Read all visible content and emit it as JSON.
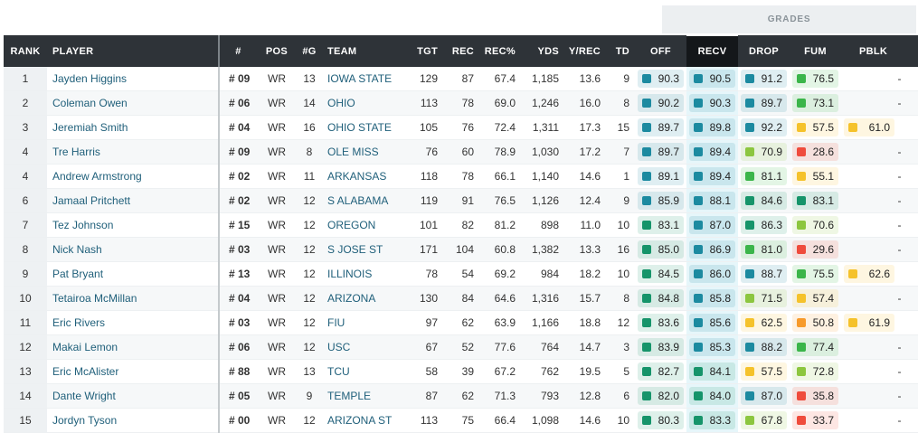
{
  "grades_header": "GRADES",
  "columns": {
    "rank": "RANK",
    "player": "PLAYER",
    "num": "#",
    "pos": "POS",
    "games": "#G",
    "team": "TEAM",
    "tgt": "TGT",
    "rec": "REC",
    "recpct": "REC%",
    "yds": "YDS",
    "yrec": "Y/REC",
    "td": "TD",
    "off": "OFF",
    "recv": "RECV",
    "drop": "DROP",
    "fum": "FUM",
    "pblk": "PBLK"
  },
  "colors": {
    "dark_green": "#16946a",
    "teal": "#1c8aa0",
    "light_green": "#8cc63f",
    "green": "#3bb54a",
    "yellow": "#f5c22b",
    "orange": "#f79a2b",
    "red": "#ef4b3c"
  },
  "rows": [
    {
      "rank": "1",
      "player": "Jayden Higgins",
      "num": "# 09",
      "pos": "WR",
      "g": "13",
      "team": "IOWA STATE",
      "tgt": "129",
      "rec": "87",
      "recpct": "67.4",
      "yds": "1,185",
      "yrec": "13.6",
      "td": "9",
      "off": {
        "v": "90.3",
        "c": "teal"
      },
      "recv": {
        "v": "90.5",
        "c": "teal"
      },
      "drop": {
        "v": "91.2",
        "c": "teal"
      },
      "fum": {
        "v": "76.5",
        "c": "green"
      },
      "pblk": {
        "v": "-",
        "c": ""
      }
    },
    {
      "rank": "2",
      "player": "Coleman Owen",
      "num": "# 06",
      "pos": "WR",
      "g": "14",
      "team": "OHIO",
      "tgt": "113",
      "rec": "78",
      "recpct": "69.0",
      "yds": "1,246",
      "yrec": "16.0",
      "td": "8",
      "off": {
        "v": "90.2",
        "c": "teal"
      },
      "recv": {
        "v": "90.3",
        "c": "teal"
      },
      "drop": {
        "v": "89.7",
        "c": "teal"
      },
      "fum": {
        "v": "73.1",
        "c": "green"
      },
      "pblk": {
        "v": "-",
        "c": ""
      }
    },
    {
      "rank": "3",
      "player": "Jeremiah Smith",
      "num": "# 04",
      "pos": "WR",
      "g": "16",
      "team": "OHIO STATE",
      "tgt": "105",
      "rec": "76",
      "recpct": "72.4",
      "yds": "1,311",
      "yrec": "17.3",
      "td": "15",
      "off": {
        "v": "89.7",
        "c": "teal"
      },
      "recv": {
        "v": "89.8",
        "c": "teal"
      },
      "drop": {
        "v": "92.2",
        "c": "teal"
      },
      "fum": {
        "v": "57.5",
        "c": "yellow"
      },
      "pblk": {
        "v": "61.0",
        "c": "yellow"
      }
    },
    {
      "rank": "4",
      "player": "Tre Harris",
      "num": "# 09",
      "pos": "WR",
      "g": "8",
      "team": "OLE MISS",
      "tgt": "76",
      "rec": "60",
      "recpct": "78.9",
      "yds": "1,030",
      "yrec": "17.2",
      "td": "7",
      "off": {
        "v": "89.7",
        "c": "teal"
      },
      "recv": {
        "v": "89.4",
        "c": "teal"
      },
      "drop": {
        "v": "70.9",
        "c": "light_green"
      },
      "fum": {
        "v": "28.6",
        "c": "red"
      },
      "pblk": {
        "v": "-",
        "c": ""
      }
    },
    {
      "rank": "4",
      "player": "Andrew Armstrong",
      "num": "# 02",
      "pos": "WR",
      "g": "11",
      "team": "ARKANSAS",
      "tgt": "118",
      "rec": "78",
      "recpct": "66.1",
      "yds": "1,140",
      "yrec": "14.6",
      "td": "1",
      "off": {
        "v": "89.1",
        "c": "teal"
      },
      "recv": {
        "v": "89.4",
        "c": "teal"
      },
      "drop": {
        "v": "81.1",
        "c": "green"
      },
      "fum": {
        "v": "55.1",
        "c": "yellow"
      },
      "pblk": {
        "v": "-",
        "c": ""
      }
    },
    {
      "rank": "6",
      "player": "Jamaal Pritchett",
      "num": "# 02",
      "pos": "WR",
      "g": "12",
      "team": "S ALABAMA",
      "tgt": "119",
      "rec": "91",
      "recpct": "76.5",
      "yds": "1,126",
      "yrec": "12.4",
      "td": "9",
      "off": {
        "v": "85.9",
        "c": "teal"
      },
      "recv": {
        "v": "88.1",
        "c": "teal"
      },
      "drop": {
        "v": "84.6",
        "c": "dark_green"
      },
      "fum": {
        "v": "83.1",
        "c": "dark_green"
      },
      "pblk": {
        "v": "-",
        "c": ""
      }
    },
    {
      "rank": "7",
      "player": "Tez Johnson",
      "num": "# 15",
      "pos": "WR",
      "g": "12",
      "team": "OREGON",
      "tgt": "101",
      "rec": "82",
      "recpct": "81.2",
      "yds": "898",
      "yrec": "11.0",
      "td": "10",
      "off": {
        "v": "83.1",
        "c": "dark_green"
      },
      "recv": {
        "v": "87.0",
        "c": "teal"
      },
      "drop": {
        "v": "86.3",
        "c": "dark_green"
      },
      "fum": {
        "v": "70.6",
        "c": "light_green"
      },
      "pblk": {
        "v": "-",
        "c": ""
      }
    },
    {
      "rank": "8",
      "player": "Nick Nash",
      "num": "# 03",
      "pos": "WR",
      "g": "12",
      "team": "S JOSE ST",
      "tgt": "171",
      "rec": "104",
      "recpct": "60.8",
      "yds": "1,382",
      "yrec": "13.3",
      "td": "16",
      "off": {
        "v": "85.0",
        "c": "dark_green"
      },
      "recv": {
        "v": "86.9",
        "c": "teal"
      },
      "drop": {
        "v": "81.0",
        "c": "green"
      },
      "fum": {
        "v": "29.6",
        "c": "red"
      },
      "pblk": {
        "v": "-",
        "c": ""
      }
    },
    {
      "rank": "9",
      "player": "Pat Bryant",
      "num": "# 13",
      "pos": "WR",
      "g": "12",
      "team": "ILLINOIS",
      "tgt": "78",
      "rec": "54",
      "recpct": "69.2",
      "yds": "984",
      "yrec": "18.2",
      "td": "10",
      "off": {
        "v": "84.5",
        "c": "dark_green"
      },
      "recv": {
        "v": "86.0",
        "c": "teal"
      },
      "drop": {
        "v": "88.7",
        "c": "teal"
      },
      "fum": {
        "v": "75.5",
        "c": "green"
      },
      "pblk": {
        "v": "62.6",
        "c": "yellow"
      }
    },
    {
      "rank": "10",
      "player": "Tetairoa McMillan",
      "num": "# 04",
      "pos": "WR",
      "g": "12",
      "team": "ARIZONA",
      "tgt": "130",
      "rec": "84",
      "recpct": "64.6",
      "yds": "1,316",
      "yrec": "15.7",
      "td": "8",
      "off": {
        "v": "84.8",
        "c": "dark_green"
      },
      "recv": {
        "v": "85.8",
        "c": "teal"
      },
      "drop": {
        "v": "71.5",
        "c": "light_green"
      },
      "fum": {
        "v": "57.4",
        "c": "yellow"
      },
      "pblk": {
        "v": "-",
        "c": ""
      }
    },
    {
      "rank": "11",
      "player": "Eric Rivers",
      "num": "# 03",
      "pos": "WR",
      "g": "12",
      "team": "FIU",
      "tgt": "97",
      "rec": "62",
      "recpct": "63.9",
      "yds": "1,166",
      "yrec": "18.8",
      "td": "12",
      "off": {
        "v": "83.6",
        "c": "dark_green"
      },
      "recv": {
        "v": "85.6",
        "c": "teal"
      },
      "drop": {
        "v": "62.5",
        "c": "yellow"
      },
      "fum": {
        "v": "50.8",
        "c": "orange"
      },
      "pblk": {
        "v": "61.9",
        "c": "yellow"
      }
    },
    {
      "rank": "12",
      "player": "Makai Lemon",
      "num": "# 06",
      "pos": "WR",
      "g": "12",
      "team": "USC",
      "tgt": "67",
      "rec": "52",
      "recpct": "77.6",
      "yds": "764",
      "yrec": "14.7",
      "td": "3",
      "off": {
        "v": "83.9",
        "c": "dark_green"
      },
      "recv": {
        "v": "85.3",
        "c": "teal"
      },
      "drop": {
        "v": "88.2",
        "c": "teal"
      },
      "fum": {
        "v": "77.4",
        "c": "green"
      },
      "pblk": {
        "v": "-",
        "c": ""
      }
    },
    {
      "rank": "13",
      "player": "Eric McAlister",
      "num": "# 88",
      "pos": "WR",
      "g": "13",
      "team": "TCU",
      "tgt": "58",
      "rec": "39",
      "recpct": "67.2",
      "yds": "762",
      "yrec": "19.5",
      "td": "5",
      "off": {
        "v": "82.7",
        "c": "dark_green"
      },
      "recv": {
        "v": "84.1",
        "c": "dark_green"
      },
      "drop": {
        "v": "57.5",
        "c": "yellow"
      },
      "fum": {
        "v": "72.8",
        "c": "light_green"
      },
      "pblk": {
        "v": "-",
        "c": ""
      }
    },
    {
      "rank": "14",
      "player": "Dante Wright",
      "num": "# 05",
      "pos": "WR",
      "g": "9",
      "team": "TEMPLE",
      "tgt": "87",
      "rec": "62",
      "recpct": "71.3",
      "yds": "793",
      "yrec": "12.8",
      "td": "6",
      "off": {
        "v": "82.0",
        "c": "dark_green"
      },
      "recv": {
        "v": "84.0",
        "c": "dark_green"
      },
      "drop": {
        "v": "87.0",
        "c": "teal"
      },
      "fum": {
        "v": "35.8",
        "c": "red"
      },
      "pblk": {
        "v": "-",
        "c": ""
      }
    },
    {
      "rank": "15",
      "player": "Jordyn Tyson",
      "num": "# 00",
      "pos": "WR",
      "g": "12",
      "team": "ARIZONA ST",
      "tgt": "113",
      "rec": "75",
      "recpct": "66.4",
      "yds": "1,098",
      "yrec": "14.6",
      "td": "10",
      "off": {
        "v": "80.3",
        "c": "dark_green"
      },
      "recv": {
        "v": "83.3",
        "c": "dark_green"
      },
      "drop": {
        "v": "67.8",
        "c": "light_green"
      },
      "fum": {
        "v": "33.7",
        "c": "red"
      },
      "pblk": {
        "v": "-",
        "c": ""
      }
    }
  ]
}
